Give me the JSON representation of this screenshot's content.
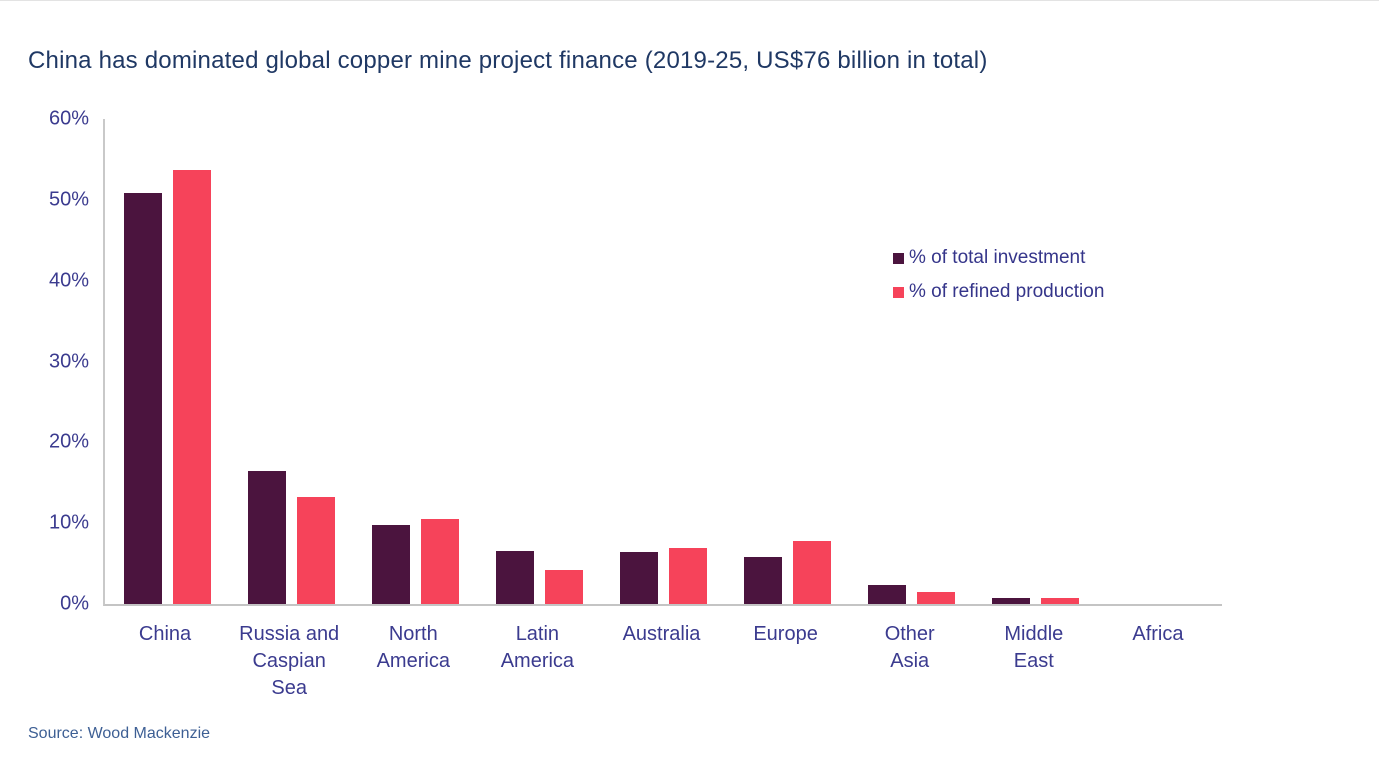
{
  "chart_data": {
    "type": "bar",
    "title": "China has dominated global copper mine project finance (2019-25, US$76 billion in total)",
    "categories": [
      "China",
      "Russia and Caspian Sea",
      "North America",
      "Latin America",
      "Australia",
      "Europe",
      "Other Asia",
      "Middle East",
      "Africa"
    ],
    "tick_labels": [
      "China",
      "Russia and\nCaspian\nSea",
      "North\nAmerica",
      "Latin\nAmerica",
      "Australia",
      "Europe",
      "Other\nAsia",
      "Middle\nEast",
      "Africa"
    ],
    "series": [
      {
        "name": "% of total investment",
        "color": "#4B143E",
        "values": [
          50.8,
          16.4,
          9.8,
          6.5,
          6.4,
          5.8,
          2.3,
          0.7,
          0
        ]
      },
      {
        "name": "% of refined production",
        "color": "#F6435A",
        "values": [
          53.7,
          13.2,
          10.5,
          4.2,
          6.9,
          7.8,
          1.5,
          0.8,
          0
        ]
      }
    ],
    "xlabel": "",
    "ylabel": "",
    "ylim": [
      0,
      60
    ],
    "ytick_step": 10,
    "ytick_suffix": "%",
    "grid": false,
    "legend_position": "upper-right-inside"
  },
  "source_note": "Source: Wood Mackenzie",
  "colors": {
    "title_text": "#1F3864",
    "axis_text": "#3B3B8F",
    "legend_text": "#35358A",
    "axis_line": "#C9C9C9",
    "source_text": "#3D5F94",
    "background": "#FFFFFF"
  }
}
